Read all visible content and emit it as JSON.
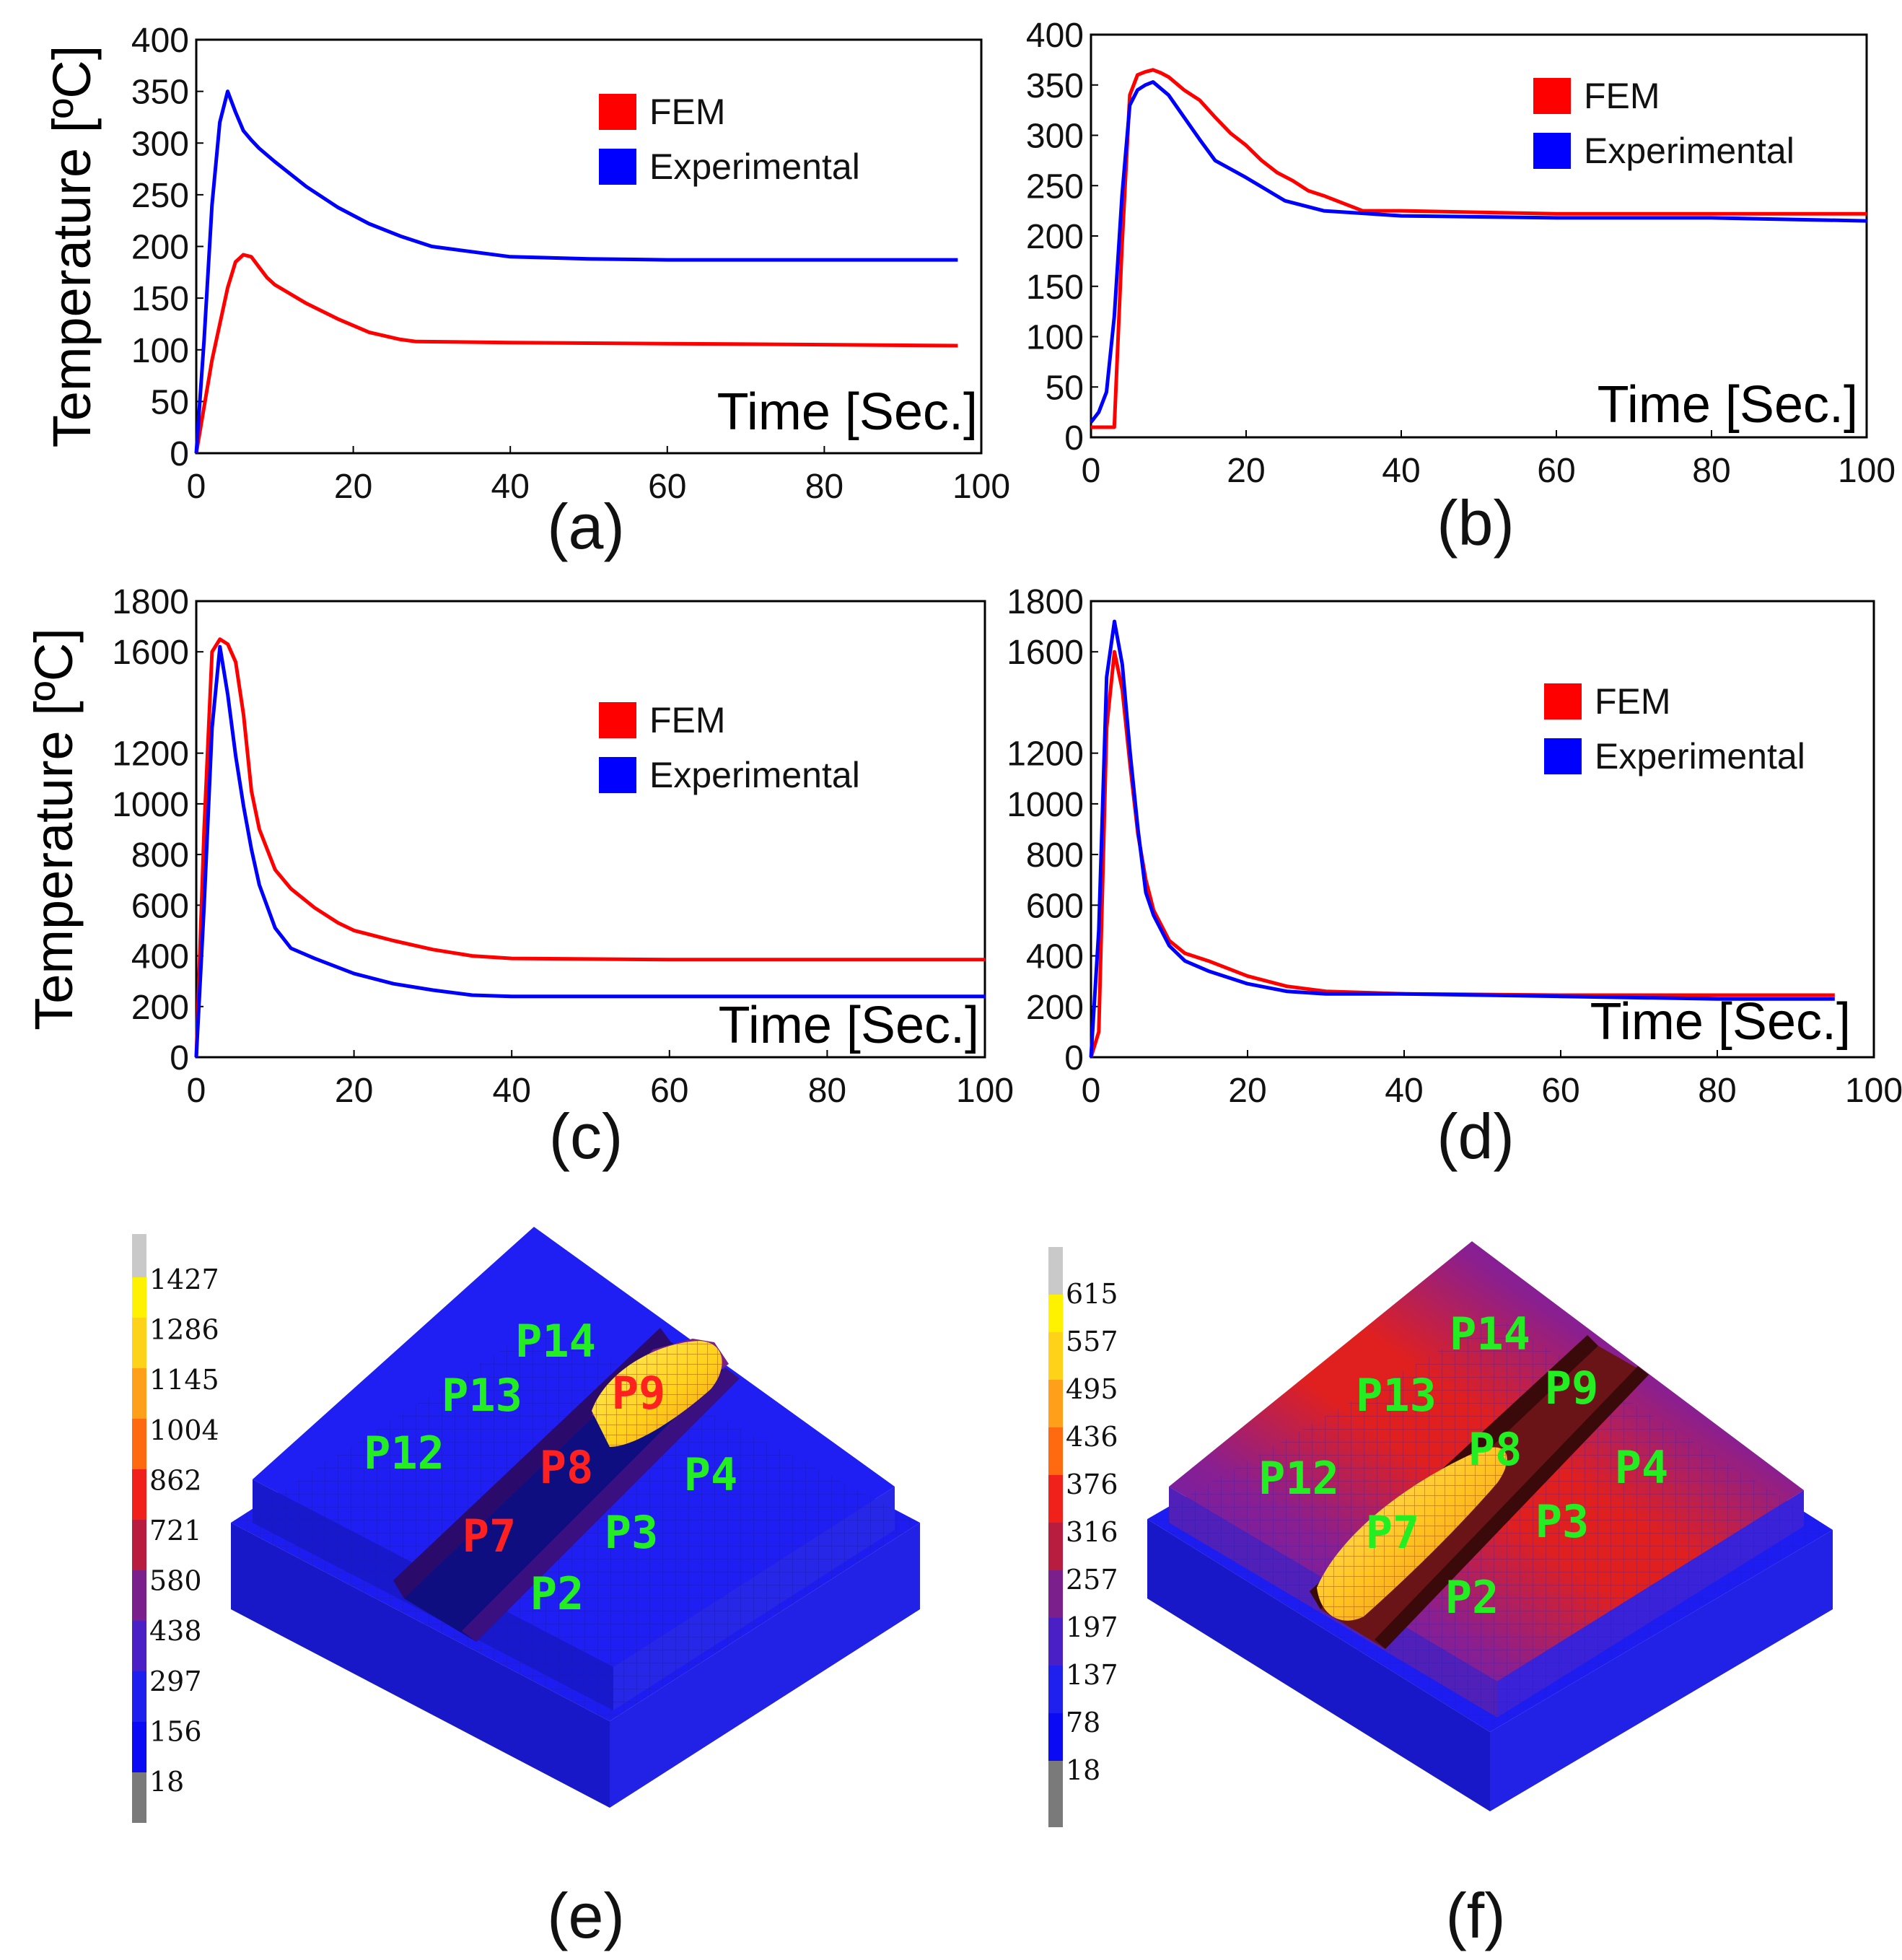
{
  "chart_data": [
    {
      "panel": "(a)",
      "type": "line",
      "ylabel": "Temperature [ºC]",
      "xlabel": "Time [Sec.]",
      "xlim": [
        0,
        100
      ],
      "ylim": [
        0,
        400
      ],
      "xticks": [
        0,
        20,
        40,
        60,
        80,
        100
      ],
      "yticks": [
        0,
        50,
        100,
        150,
        200,
        250,
        300,
        350,
        400
      ],
      "legend": "top-right",
      "series": [
        {
          "name": "FEM",
          "color": "#ff0000",
          "x": [
            0,
            2,
            4,
            5,
            6,
            7,
            8,
            9,
            10,
            14,
            18,
            22,
            26,
            28,
            40,
            60,
            80,
            97
          ],
          "y": [
            0,
            90,
            160,
            185,
            192,
            190,
            180,
            170,
            163,
            145,
            130,
            117,
            110,
            108,
            107,
            106,
            105,
            104
          ]
        },
        {
          "name": "Experimental",
          "color": "#0000ff",
          "x": [
            0,
            1,
            2,
            3,
            4,
            5,
            6,
            7,
            8,
            10,
            14,
            18,
            22,
            26,
            30,
            35,
            40,
            50,
            60,
            80,
            97
          ],
          "y": [
            0,
            110,
            240,
            320,
            350,
            330,
            312,
            303,
            295,
            282,
            258,
            238,
            222,
            210,
            200,
            195,
            190,
            188,
            187,
            187,
            187
          ]
        }
      ]
    },
    {
      "panel": "(b)",
      "type": "line",
      "xlabel": "Time [Sec.]",
      "xlim": [
        0,
        100
      ],
      "ylim": [
        0,
        400
      ],
      "xticks": [
        0,
        20,
        40,
        60,
        80,
        100
      ],
      "yticks": [
        0,
        50,
        100,
        150,
        200,
        250,
        300,
        350,
        400
      ],
      "legend": "top-right",
      "series": [
        {
          "name": "FEM",
          "color": "#ff0000",
          "x": [
            0,
            3,
            4,
            5,
            6,
            7,
            8,
            9,
            10,
            12,
            14,
            16,
            18,
            20,
            22,
            24,
            26,
            28,
            30,
            35,
            40,
            60,
            80,
            100
          ],
          "y": [
            10,
            10,
            190,
            340,
            360,
            363,
            365,
            362,
            358,
            345,
            335,
            318,
            302,
            290,
            275,
            263,
            255,
            245,
            240,
            225,
            225,
            222,
            222,
            222
          ]
        },
        {
          "name": "Experimental",
          "color": "#0000ff",
          "x": [
            0,
            1,
            2,
            3,
            4,
            5,
            6,
            7,
            8,
            10,
            12,
            14,
            16,
            20,
            25,
            30,
            40,
            60,
            80,
            100
          ],
          "y": [
            15,
            25,
            45,
            120,
            240,
            330,
            345,
            350,
            353,
            340,
            318,
            296,
            275,
            258,
            235,
            225,
            220,
            218,
            218,
            215
          ]
        }
      ]
    },
    {
      "panel": "(c)",
      "type": "line",
      "ylabel": "Temperature [ºC]",
      "xlabel": "Time [Sec.]",
      "xlim": [
        0,
        100
      ],
      "ylim": [
        0,
        1800
      ],
      "xticks": [
        0,
        20,
        40,
        60,
        80,
        100
      ],
      "yticks": [
        0,
        200,
        400,
        600,
        800,
        1000,
        1200,
        1600,
        1800
      ],
      "legend": "top-right",
      "series": [
        {
          "name": "FEM",
          "color": "#ff0000",
          "x": [
            0,
            1,
            2,
            3,
            4,
            5,
            6,
            7,
            8,
            10,
            12,
            15,
            18,
            20,
            25,
            30,
            35,
            40,
            60,
            80,
            100
          ],
          "y": [
            0,
            900,
            1600,
            1650,
            1630,
            1560,
            1350,
            1050,
            900,
            740,
            665,
            590,
            530,
            500,
            460,
            425,
            400,
            390,
            385,
            385,
            385
          ]
        },
        {
          "name": "Experimental",
          "color": "#0000ff",
          "x": [
            0,
            1,
            2,
            3,
            4,
            5,
            6,
            7,
            8,
            10,
            12,
            15,
            20,
            25,
            30,
            35,
            40,
            60,
            80,
            100
          ],
          "y": [
            0,
            600,
            1300,
            1620,
            1430,
            1190,
            990,
            820,
            680,
            510,
            430,
            390,
            330,
            290,
            265,
            245,
            240,
            240,
            240,
            240
          ]
        }
      ]
    },
    {
      "panel": "(d)",
      "type": "line",
      "xlabel": "Time [Sec.]",
      "xlim": [
        0,
        100
      ],
      "ylim": [
        0,
        1800
      ],
      "xticks": [
        0,
        20,
        40,
        60,
        80,
        100
      ],
      "yticks": [
        0,
        200,
        400,
        600,
        800,
        1000,
        1200,
        1600,
        1800
      ],
      "legend": "top-right",
      "series": [
        {
          "name": "FEM",
          "color": "#ff0000",
          "x": [
            0,
            1,
            2,
            3,
            4,
            5,
            6,
            7,
            8,
            10,
            12,
            15,
            20,
            25,
            30,
            40,
            60,
            80,
            95
          ],
          "y": [
            0,
            100,
            1300,
            1600,
            1450,
            1150,
            880,
            700,
            580,
            460,
            410,
            380,
            320,
            280,
            260,
            250,
            245,
            245,
            245
          ]
        },
        {
          "name": "Experimental",
          "color": "#0000ff",
          "x": [
            0,
            1,
            2,
            3,
            4,
            5,
            6,
            7,
            8,
            10,
            12,
            15,
            20,
            25,
            30,
            40,
            60,
            80,
            95
          ],
          "y": [
            0,
            500,
            1500,
            1720,
            1550,
            1200,
            900,
            650,
            560,
            440,
            380,
            340,
            290,
            260,
            250,
            250,
            240,
            230,
            230
          ]
        }
      ]
    }
  ],
  "contour_panels": [
    {
      "panel": "(e)",
      "colorbar": [
        "1427",
        "1286",
        "1145",
        "1004",
        "862",
        "721",
        "580",
        "438",
        "297",
        "156",
        "18"
      ],
      "points": [
        {
          "label": "P14",
          "color": "#22ee22"
        },
        {
          "label": "P13",
          "color": "#22ee22"
        },
        {
          "label": "P12",
          "color": "#22ee22"
        },
        {
          "label": "P9",
          "color": "#ff2020"
        },
        {
          "label": "P8",
          "color": "#ff2020"
        },
        {
          "label": "P7",
          "color": "#ff2020"
        },
        {
          "label": "P4",
          "color": "#22ee22"
        },
        {
          "label": "P3",
          "color": "#22ee22"
        },
        {
          "label": "P2",
          "color": "#22ee22"
        }
      ]
    },
    {
      "panel": "(f)",
      "colorbar": [
        "615",
        "557",
        "495",
        "436",
        "376",
        "316",
        "257",
        "197",
        "137",
        "78",
        "18"
      ],
      "points": [
        {
          "label": "P14",
          "color": "#22ee22"
        },
        {
          "label": "P13",
          "color": "#22ee22"
        },
        {
          "label": "P12",
          "color": "#22ee22"
        },
        {
          "label": "P9",
          "color": "#22ee22"
        },
        {
          "label": "P8",
          "color": "#22ee22"
        },
        {
          "label": "P7",
          "color": "#22ee22"
        },
        {
          "label": "P4",
          "color": "#22ee22"
        },
        {
          "label": "P3",
          "color": "#22ee22"
        },
        {
          "label": "P2",
          "color": "#22ee22"
        }
      ]
    }
  ]
}
